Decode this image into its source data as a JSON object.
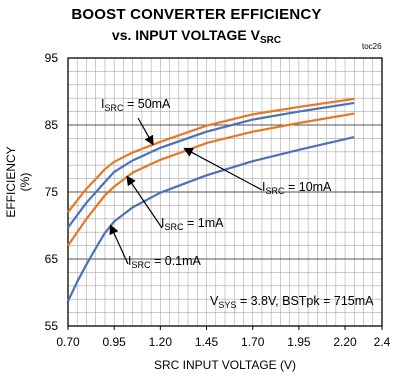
{
  "chart_data": {
    "type": "line",
    "title_line1": "BOOST CONVERTER EFFICIENCY",
    "title_line2_main": "vs. INPUT VOLTAGE V",
    "title_line2_sub": "SRC",
    "figure_code": "toc26",
    "xlabel": "SRC INPUT VOLTAGE (V)",
    "ylabel": "EFFICIENCY (%)",
    "xlim": [
      0.7,
      2.4
    ],
    "ylim": [
      55,
      95
    ],
    "xticks": [
      "0.70",
      "0.95",
      "1.20",
      "1.45",
      "1.70",
      "1.95",
      "2.20",
      "2.4"
    ],
    "yticks": [
      "95",
      "85",
      "75",
      "65",
      "55"
    ],
    "annotation": {
      "v_main": "V",
      "v_sub": "SYS",
      "rest": " = 3.8V, BSTpk = 715mA"
    },
    "colors": {
      "blue": "#4a72b8",
      "orange": "#e87722",
      "grid": "#aaaaaa",
      "axis": "#000000"
    },
    "series": [
      {
        "name_main": "I",
        "name_sub": "SRC",
        "name_rest": " = 50mA",
        "color": "#e87722",
        "x": [
          0.7,
          0.8,
          0.9,
          0.95,
          1.05,
          1.2,
          1.45,
          1.7,
          1.95,
          2.25
        ],
        "y": [
          72.0,
          75.5,
          78.4,
          79.5,
          80.9,
          82.5,
          84.9,
          86.6,
          87.7,
          88.9
        ]
      },
      {
        "name_main": "I",
        "name_sub": "SRC",
        "name_rest": " = 10mA",
        "color": "#4a72b8",
        "x": [
          0.7,
          0.8,
          0.9,
          0.95,
          1.05,
          1.2,
          1.45,
          1.7,
          1.95,
          2.25
        ],
        "y": [
          69.7,
          73.4,
          76.5,
          78.0,
          79.7,
          81.6,
          84.0,
          85.8,
          87.0,
          88.3
        ]
      },
      {
        "name_main": "I",
        "name_sub": "SRC",
        "name_rest": " = 1mA",
        "color": "#e87722",
        "x": [
          0.7,
          0.8,
          0.9,
          0.95,
          1.05,
          1.2,
          1.45,
          1.7,
          1.95,
          2.25
        ],
        "y": [
          67.0,
          71.0,
          74.5,
          75.8,
          77.9,
          79.8,
          82.3,
          84.0,
          85.3,
          86.7
        ]
      },
      {
        "name_main": "I",
        "name_sub": "SRC",
        "name_rest": " = 0.1mA",
        "color": "#4a72b8",
        "x": [
          0.7,
          0.75,
          0.8,
          0.85,
          0.9,
          0.95,
          1.05,
          1.2,
          1.45,
          1.7,
          1.95,
          2.25
        ],
        "y": [
          58.7,
          61.6,
          64.2,
          66.6,
          68.9,
          70.6,
          72.7,
          74.9,
          77.5,
          79.6,
          81.3,
          83.2
        ]
      }
    ]
  }
}
